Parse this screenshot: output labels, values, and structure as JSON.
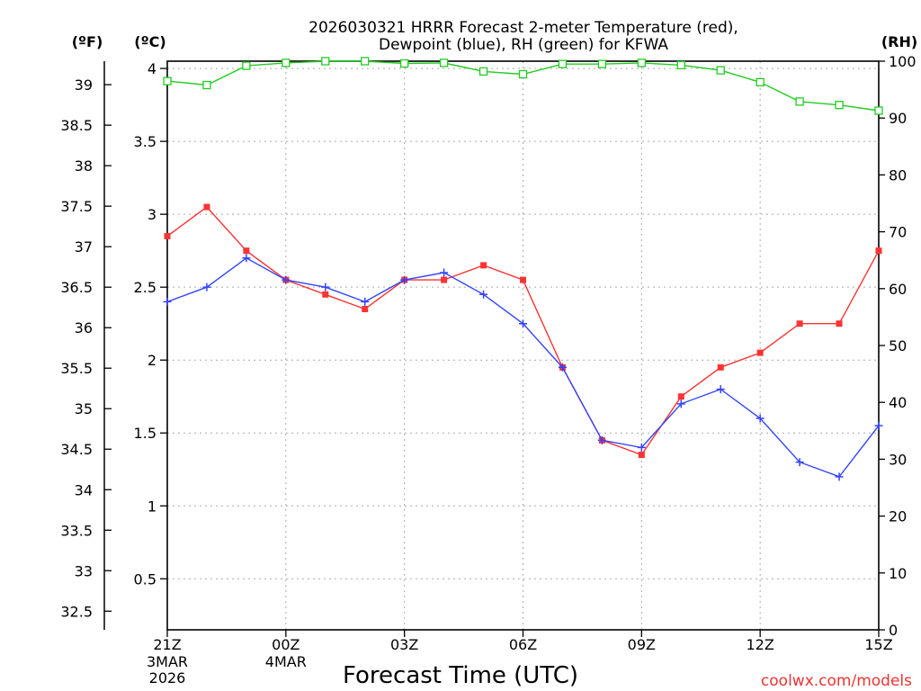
{
  "chart_data": {
    "type": "line",
    "title_line1": "2026030321 HRRR Forecast 2-meter Temperature (red),",
    "title_line2": "Dewpoint (blue), RH (green) for KFWA",
    "xlabel": "Forecast Time (UTC)",
    "watermark": "coolwx.com/models",
    "unit_labels": {
      "fahrenheit": "(ºF)",
      "celsius": "(ºC)",
      "rh": "(RH)"
    },
    "x": [
      0,
      1,
      2,
      3,
      4,
      5,
      6,
      7,
      8,
      9,
      10,
      11,
      12,
      13,
      14,
      15,
      16,
      17,
      18
    ],
    "x_ticks": [
      {
        "x": 0,
        "label": "21Z",
        "sub1": "3MAR",
        "sub2": "2026"
      },
      {
        "x": 3,
        "label": "00Z",
        "sub1": "4MAR",
        "sub2": ""
      },
      {
        "x": 6,
        "label": "03Z",
        "sub1": "",
        "sub2": ""
      },
      {
        "x": 9,
        "label": "06Z",
        "sub1": "",
        "sub2": ""
      },
      {
        "x": 12,
        "label": "09Z",
        "sub1": "",
        "sub2": ""
      },
      {
        "x": 15,
        "label": "12Z",
        "sub1": "",
        "sub2": ""
      },
      {
        "x": 18,
        "label": "15Z",
        "sub1": "",
        "sub2": ""
      }
    ],
    "xlim": [
      0,
      18
    ],
    "celsius_axis": {
      "ylim": [
        0.15,
        4.05
      ],
      "ticks": [
        0.5,
        1,
        1.5,
        2,
        2.5,
        3,
        3.5,
        4
      ],
      "tick_labels": [
        "0.5",
        "1",
        "1.5",
        "2",
        "2.5",
        "3",
        "3.5",
        "4"
      ]
    },
    "fahrenheit_axis": {
      "ticks": [
        32.5,
        33,
        33.5,
        34,
        34.5,
        35,
        35.5,
        36,
        36.5,
        37,
        37.5,
        38,
        38.5,
        39
      ],
      "tick_labels": [
        "32.5",
        "33",
        "33.5",
        "34",
        "34.5",
        "35",
        "35.5",
        "36",
        "36.5",
        "37",
        "37.5",
        "38",
        "38.5",
        "39"
      ]
    },
    "rh_axis": {
      "ylim": [
        0,
        100
      ],
      "ticks": [
        0,
        10,
        20,
        30,
        40,
        50,
        60,
        70,
        80,
        90,
        100
      ],
      "tick_labels": [
        "0",
        "10",
        "20",
        "30",
        "40",
        "50",
        "60",
        "70",
        "80",
        "90",
        "100"
      ]
    },
    "grid": true,
    "series": [
      {
        "name": "Temperature",
        "axis": "celsius",
        "color": "#ff3333",
        "marker": "filled-square",
        "values": [
          2.85,
          3.05,
          2.75,
          2.55,
          2.45,
          2.35,
          2.55,
          2.55,
          2.65,
          2.55,
          1.95,
          1.45,
          1.35,
          1.75,
          1.95,
          2.05,
          2.25,
          2.25,
          2.75
        ]
      },
      {
        "name": "Dewpoint",
        "axis": "celsius",
        "color": "#3344ff",
        "marker": "plus",
        "values": [
          2.4,
          2.5,
          2.7,
          2.55,
          2.5,
          2.4,
          2.55,
          2.6,
          2.45,
          2.25,
          1.95,
          1.45,
          1.4,
          1.7,
          1.8,
          1.6,
          1.3,
          1.2,
          1.55
        ]
      },
      {
        "name": "RH",
        "axis": "rh",
        "color": "#22cc22",
        "marker": "open-square",
        "values": [
          96.5,
          95.8,
          99.2,
          99.7,
          100,
          100,
          99.6,
          99.7,
          98.2,
          97.7,
          99.5,
          99.5,
          99.7,
          99.3,
          98.4,
          96.3,
          92.9,
          92.3,
          91.3
        ]
      }
    ]
  }
}
